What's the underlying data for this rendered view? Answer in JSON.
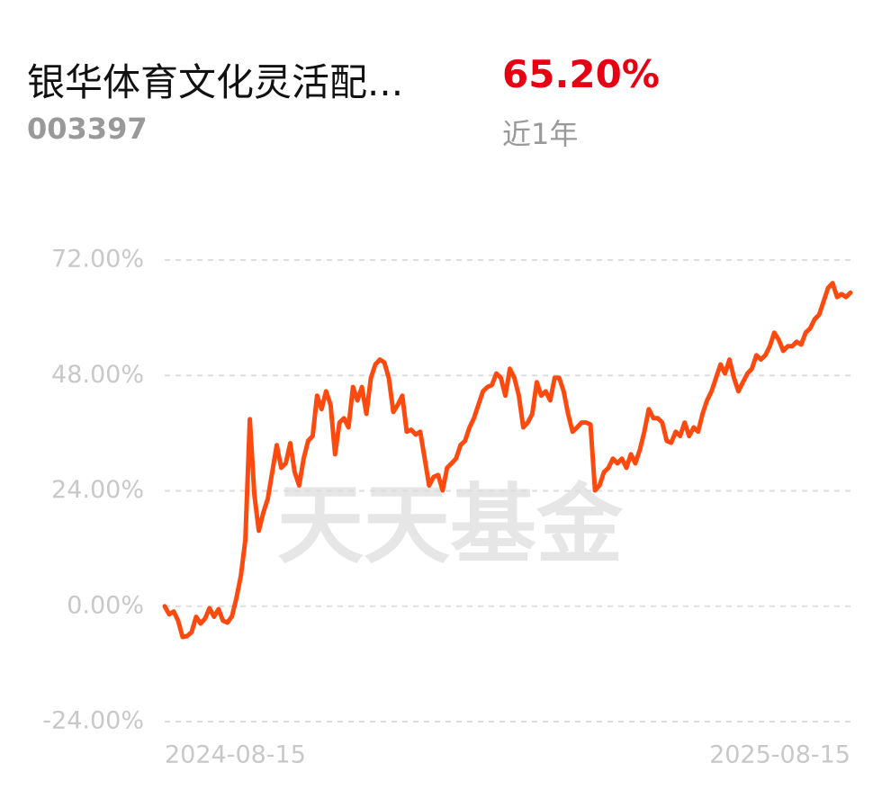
{
  "header": {
    "name": "银华体育文化灵活配...",
    "return": "65.20%",
    "code": "003397",
    "period": "近1年"
  },
  "chart_data": {
    "type": "line",
    "watermark": "天天基金",
    "categories": [
      "2024-08-15",
      null,
      null,
      null,
      null,
      null,
      null,
      null,
      null,
      null,
      null,
      null,
      null,
      null,
      null,
      null,
      null,
      null,
      null,
      null,
      null,
      null,
      null,
      null,
      null,
      null,
      null,
      null,
      null,
      null,
      null,
      null,
      null,
      null,
      null,
      null,
      null,
      null,
      null,
      null,
      null,
      null,
      null,
      null,
      null,
      null,
      null,
      null,
      null,
      null,
      null,
      null,
      null,
      null,
      null,
      null,
      null,
      null,
      null,
      null,
      null,
      null,
      null,
      null,
      null,
      null,
      null,
      null,
      null,
      null,
      null,
      null,
      null,
      null,
      null,
      null,
      null,
      null,
      null,
      null,
      null,
      null,
      null,
      null,
      null,
      null,
      null,
      null,
      null,
      null,
      null,
      null,
      null,
      null,
      null,
      null,
      null,
      null,
      null,
      null,
      null,
      null,
      null,
      null,
      null,
      null,
      null,
      null,
      null,
      null,
      null,
      null,
      null,
      null,
      null,
      null,
      null,
      null,
      null,
      null,
      null,
      null,
      null,
      null,
      null,
      null,
      null,
      null,
      null,
      null,
      null,
      null,
      null,
      null,
      null,
      null,
      null,
      null,
      null,
      null,
      null,
      null,
      null,
      null,
      null,
      null,
      null,
      null,
      null,
      null,
      null,
      null,
      null,
      "2025-08-15"
    ],
    "series": [
      {
        "color": "#ff4a0f",
        "values": [
          0,
          -1.7,
          -1.1,
          -3.0,
          -6.4,
          -6.2,
          -5.4,
          -2.2,
          -3.6,
          -2.6,
          -0.4,
          -2.2,
          -0.6,
          -3.0,
          -3.4,
          -2.1,
          1.7,
          6.4,
          13.8,
          38.9,
          23.2,
          15.7,
          19.5,
          22.3,
          27.9,
          33.5,
          28.8,
          29.7,
          33.9,
          27.9,
          25.1,
          30.7,
          34.4,
          35.4,
          43.8,
          41.0,
          44.7,
          41.9,
          31.6,
          38.2,
          39.1,
          37.2,
          45.6,
          42.8,
          45.6,
          40.0,
          47.5,
          50.3,
          51.3,
          50.7,
          47.5,
          40.4,
          41.9,
          43.8,
          36.3,
          36.7,
          35.7,
          36.3,
          30.7,
          25.1,
          26.9,
          27.3,
          24.1,
          28.8,
          29.7,
          30.7,
          33.5,
          34.4,
          37.2,
          39.1,
          41.9,
          44.7,
          45.6,
          46.0,
          48.4,
          47.5,
          43.8,
          49.4,
          47.5,
          43.8,
          37.2,
          38.2,
          40.0,
          46.6,
          43.8,
          44.7,
          42.8,
          47.5,
          47.5,
          44.7,
          40.0,
          36.3,
          37.2,
          38.2,
          38.2,
          37.8,
          24.1,
          25.1,
          27.9,
          28.8,
          30.7,
          29.7,
          30.7,
          28.8,
          31.6,
          29.7,
          32.5,
          36.3,
          41.0,
          39.1,
          39.1,
          38.2,
          34.4,
          34.0,
          36.3,
          35.4,
          38.2,
          35.4,
          37.2,
          36.3,
          40.0,
          42.8,
          44.7,
          47.5,
          50.3,
          48.4,
          51.3,
          47.5,
          44.7,
          46.6,
          48.4,
          49.4,
          52.2,
          51.3,
          52.2,
          54.1,
          56.9,
          55.4,
          53.1,
          54.1,
          54.1,
          55.0,
          54.4,
          56.9,
          57.8,
          59.7,
          60.6,
          63.4,
          66.2,
          67.2,
          64.3,
          64.9,
          64.3,
          65.2
        ]
      }
    ],
    "ylim": [
      -24,
      72
    ],
    "yticks": [
      {
        "value": 72,
        "label": "72.00%"
      },
      {
        "value": 48,
        "label": "48.00%"
      },
      {
        "value": 24,
        "label": "24.00%"
      },
      {
        "value": 0,
        "label": "0.00%"
      },
      {
        "value": -24,
        "label": "-24.00%"
      }
    ],
    "grid": true
  }
}
